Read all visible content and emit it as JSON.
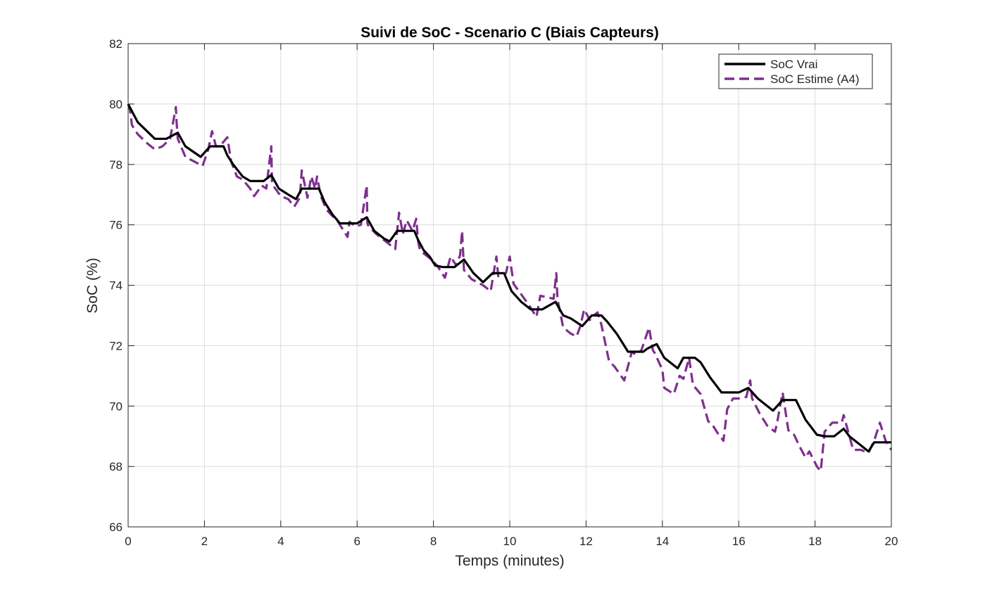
{
  "chart_data": {
    "type": "line",
    "title": "Suivi de SoC - Scenario C (Biais Capteurs)",
    "xlabel": "Temps (minutes)",
    "ylabel": "SoC (%)",
    "xlim": [
      0,
      20
    ],
    "ylim": [
      66,
      82
    ],
    "xticks": [
      0,
      2,
      4,
      6,
      8,
      10,
      12,
      14,
      16,
      18,
      20
    ],
    "yticks": [
      66,
      68,
      70,
      72,
      74,
      76,
      78,
      80,
      82
    ],
    "grid": true,
    "legend_position": "top-right",
    "series": [
      {
        "name": "SoC Vrai",
        "color": "#000000",
        "style": "solid",
        "x": [
          0,
          0.25,
          0.7,
          1.0,
          1.3,
          1.5,
          1.9,
          2.15,
          2.4,
          2.5,
          2.6,
          2.75,
          3.0,
          3.2,
          3.35,
          3.55,
          3.75,
          3.95,
          4.2,
          4.4,
          4.55,
          4.8,
          5.0,
          5.15,
          5.35,
          5.55,
          5.75,
          6.0,
          6.25,
          6.45,
          6.7,
          6.85,
          7.05,
          7.25,
          7.5,
          7.6,
          7.75,
          7.9,
          8.05,
          8.25,
          8.55,
          8.8,
          9.05,
          9.3,
          9.55,
          9.65,
          9.85,
          10.05,
          10.3,
          10.55,
          10.85,
          11.2,
          11.4,
          11.6,
          11.9,
          12.15,
          12.4,
          12.55,
          12.8,
          13.1,
          13.3,
          13.5,
          13.6,
          13.85,
          14.05,
          14.4,
          14.55,
          14.65,
          14.85,
          15.0,
          15.25,
          15.55,
          15.9,
          16.0,
          16.25,
          16.5,
          16.7,
          16.9,
          17.15,
          17.3,
          17.5,
          17.75,
          18.05,
          18.25,
          18.5,
          18.75,
          18.9,
          19.1,
          19.4,
          19.55,
          19.7,
          19.85,
          20.0
        ],
        "y": [
          80.0,
          79.4,
          78.85,
          78.85,
          79.05,
          78.6,
          78.25,
          78.6,
          78.6,
          78.6,
          78.3,
          78.0,
          77.6,
          77.45,
          77.45,
          77.45,
          77.65,
          77.2,
          77.0,
          76.85,
          77.2,
          77.2,
          77.2,
          76.75,
          76.35,
          76.05,
          76.05,
          76.05,
          76.25,
          75.8,
          75.55,
          75.45,
          75.8,
          75.8,
          75.8,
          75.5,
          75.15,
          74.95,
          74.65,
          74.6,
          74.6,
          74.85,
          74.4,
          74.1,
          74.4,
          74.4,
          74.4,
          73.8,
          73.45,
          73.2,
          73.2,
          73.45,
          73.0,
          72.9,
          72.65,
          73.0,
          73.0,
          72.8,
          72.4,
          71.8,
          71.8,
          71.8,
          71.9,
          72.05,
          71.6,
          71.25,
          71.6,
          71.6,
          71.6,
          71.45,
          70.95,
          70.45,
          70.45,
          70.45,
          70.6,
          70.25,
          70.05,
          69.85,
          70.2,
          70.2,
          70.2,
          69.55,
          69.05,
          69.0,
          69.0,
          69.25,
          69.0,
          68.8,
          68.5,
          68.8,
          68.8,
          68.8,
          68.8
        ]
      },
      {
        "name": "SoC Estime (A4)",
        "color": "#7e2f8e",
        "style": "dashed",
        "x": [
          0,
          0.05,
          0.1,
          0.25,
          0.5,
          0.7,
          0.9,
          1.1,
          1.25,
          1.27,
          1.3,
          1.5,
          1.8,
          1.95,
          2.1,
          2.2,
          2.3,
          2.4,
          2.6,
          2.7,
          2.85,
          3.0,
          3.2,
          3.3,
          3.5,
          3.62,
          3.75,
          3.77,
          3.8,
          4.0,
          4.2,
          4.35,
          4.5,
          4.55,
          4.7,
          4.8,
          4.9,
          4.95,
          5.05,
          5.2,
          5.5,
          5.75,
          5.8,
          5.95,
          6.1,
          6.25,
          6.27,
          6.3,
          6.5,
          6.8,
          7.0,
          7.1,
          7.2,
          7.3,
          7.45,
          7.55,
          7.6,
          7.65,
          7.9,
          8.1,
          8.3,
          8.45,
          8.6,
          8.7,
          8.75,
          8.8,
          9.0,
          9.3,
          9.5,
          9.65,
          9.7,
          9.9,
          10.0,
          10.1,
          10.5,
          10.7,
          10.8,
          11.0,
          11.15,
          11.22,
          11.25,
          11.4,
          11.6,
          11.75,
          11.85,
          11.95,
          12.1,
          12.2,
          12.3,
          12.4,
          12.6,
          12.75,
          13.0,
          13.2,
          13.3,
          13.45,
          13.65,
          13.75,
          13.8,
          14.0,
          14.05,
          14.3,
          14.45,
          14.55,
          14.7,
          14.8,
          15.0,
          15.2,
          15.3,
          15.45,
          15.6,
          15.7,
          15.85,
          16.0,
          16.2,
          16.3,
          16.35,
          16.55,
          16.75,
          16.95,
          17.0,
          17.15,
          17.3,
          17.45,
          17.6,
          17.75,
          17.85,
          18.05,
          18.15,
          18.25,
          18.45,
          18.7,
          18.75,
          18.9,
          19.0,
          19.2,
          19.4,
          19.55,
          19.7,
          19.85,
          20.0
        ],
        "y": [
          80.0,
          79.8,
          79.3,
          79.0,
          78.7,
          78.5,
          78.6,
          78.85,
          79.9,
          79.4,
          78.85,
          78.25,
          78.05,
          77.95,
          78.5,
          79.1,
          78.6,
          78.6,
          78.9,
          78.1,
          77.6,
          77.5,
          77.2,
          76.95,
          77.3,
          77.2,
          78.6,
          77.4,
          77.3,
          76.95,
          76.85,
          76.6,
          76.9,
          77.8,
          76.9,
          77.6,
          77.2,
          77.6,
          76.95,
          76.5,
          76.1,
          75.6,
          76.1,
          75.95,
          76.0,
          77.3,
          76.05,
          75.95,
          75.7,
          75.4,
          75.2,
          76.4,
          75.7,
          76.15,
          75.8,
          76.2,
          75.45,
          75.15,
          74.9,
          74.65,
          74.25,
          74.95,
          74.65,
          75.0,
          75.8,
          74.5,
          74.2,
          74.0,
          73.8,
          74.95,
          74.3,
          74.4,
          74.95,
          74.05,
          73.35,
          72.95,
          73.65,
          73.6,
          73.55,
          74.4,
          73.55,
          72.6,
          72.4,
          72.3,
          72.65,
          73.2,
          72.85,
          73.0,
          73.1,
          72.7,
          71.5,
          71.3,
          70.85,
          71.8,
          71.7,
          71.85,
          72.6,
          71.85,
          71.75,
          71.2,
          70.6,
          70.4,
          71.0,
          70.9,
          71.6,
          70.7,
          70.4,
          69.5,
          69.4,
          69.1,
          68.85,
          69.9,
          70.25,
          70.25,
          70.3,
          70.85,
          70.25,
          69.75,
          69.35,
          69.15,
          69.4,
          70.45,
          69.2,
          69.05,
          68.65,
          68.3,
          68.5,
          68.0,
          67.85,
          69.15,
          69.45,
          69.45,
          69.7,
          69.0,
          68.55,
          68.55,
          68.45,
          68.85,
          69.45,
          68.85,
          68.55
        ]
      }
    ]
  }
}
